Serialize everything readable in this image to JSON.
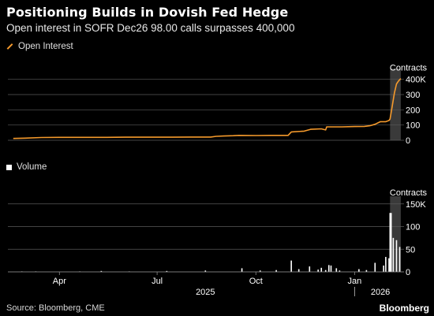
{
  "header": {
    "title": "Positioning Builds in Dovish Fed Hedge",
    "subtitle": "Open interest in SOFR Dec26 98.00 calls surpasses 400,000"
  },
  "legend": {
    "open_interest": "Open Interest",
    "volume": "Volume"
  },
  "footer": {
    "source": "Source: Bloomberg, CME",
    "brand": "Bloomberg"
  },
  "colors": {
    "background": "#000000",
    "open_interest_line": "#f59a2c",
    "volume_bars": "#ffffff",
    "gridline": "#5a5a5a",
    "highlight_band": "#3a3a3a"
  },
  "chart_data": [
    {
      "type": "line",
      "unit_label": "Contracts",
      "series": [
        {
          "name": "Open Interest",
          "x": [
            "2025-02-17",
            "2025-02-28",
            "2025-03-15",
            "2025-04-01",
            "2025-04-15",
            "2025-05-01",
            "2025-05-15",
            "2025-06-01",
            "2025-06-15",
            "2025-07-01",
            "2025-07-15",
            "2025-08-01",
            "2025-08-20",
            "2025-08-25",
            "2025-09-01",
            "2025-09-10",
            "2025-09-15",
            "2025-10-01",
            "2025-10-15",
            "2025-10-31",
            "2025-11-03",
            "2025-11-15",
            "2025-11-20",
            "2025-11-21",
            "2025-12-01",
            "2025-12-05",
            "2025-12-06",
            "2025-12-20",
            "2026-01-01",
            "2026-01-10",
            "2026-01-15",
            "2026-01-20",
            "2026-01-25",
            "2026-01-30",
            "2026-02-02",
            "2026-02-03",
            "2026-02-05",
            "2026-02-07",
            "2026-02-09",
            "2026-02-11",
            "2026-02-13"
          ],
          "values": [
            12,
            14,
            18,
            19,
            19,
            19,
            19,
            20,
            20,
            20,
            20,
            21,
            21,
            26,
            28,
            30,
            32,
            31,
            32,
            32,
            55,
            60,
            70,
            72,
            75,
            68,
            88,
            88,
            90,
            91,
            95,
            105,
            122,
            122,
            130,
            140,
            222,
            310,
            370,
            390,
            405
          ]
        }
      ],
      "y_ticks": [
        "0",
        "100",
        "200",
        "300",
        "400K"
      ],
      "ylim": [
        0,
        450
      ],
      "highlight_range": [
        "2026-02-03",
        "2026-02-13"
      ],
      "grid": true
    },
    {
      "type": "bar",
      "unit_label": "Contracts",
      "series": [
        {
          "name": "Volume",
          "x": [
            "2025-02-25",
            "2025-03-10",
            "2025-04-20",
            "2025-05-10",
            "2025-06-05",
            "2025-07-10",
            "2025-08-15",
            "2025-09-18",
            "2025-10-05",
            "2025-10-20",
            "2025-11-03",
            "2025-11-10",
            "2025-11-20",
            "2025-11-28",
            "2025-12-01",
            "2025-12-05",
            "2025-12-08",
            "2025-12-10",
            "2025-12-15",
            "2025-12-18",
            "2026-01-05",
            "2026-01-12",
            "2026-01-20",
            "2026-01-28",
            "2026-01-30",
            "2026-02-02",
            "2026-02-03",
            "2026-02-04",
            "2026-02-06",
            "2026-02-09",
            "2026-02-12"
          ],
          "values": [
            1,
            1,
            1,
            2,
            1,
            2,
            3,
            8,
            3,
            4,
            25,
            6,
            12,
            5,
            9,
            4,
            15,
            14,
            8,
            3,
            6,
            4,
            20,
            14,
            33,
            30,
            130,
            130,
            75,
            70,
            55
          ]
        }
      ],
      "y_ticks": [
        "0",
        "50",
        "100",
        "150K"
      ],
      "ylim": [
        0,
        160
      ],
      "highlight_range": [
        "2026-02-03",
        "2026-02-13"
      ],
      "grid": true
    }
  ],
  "x_axis": {
    "month_ticks": [
      {
        "label": "Apr",
        "date": "2025-04-01"
      },
      {
        "label": "Jul",
        "date": "2025-07-01"
      },
      {
        "label": "Oct",
        "date": "2025-10-01"
      },
      {
        "label": "Jan",
        "date": "2026-01-01"
      }
    ],
    "year_labels": [
      {
        "label": "2025",
        "date": "2025-08-15"
      },
      {
        "label": "2026",
        "date": "2026-01-25"
      }
    ],
    "range": [
      "2025-02-12",
      "2026-02-16"
    ]
  }
}
